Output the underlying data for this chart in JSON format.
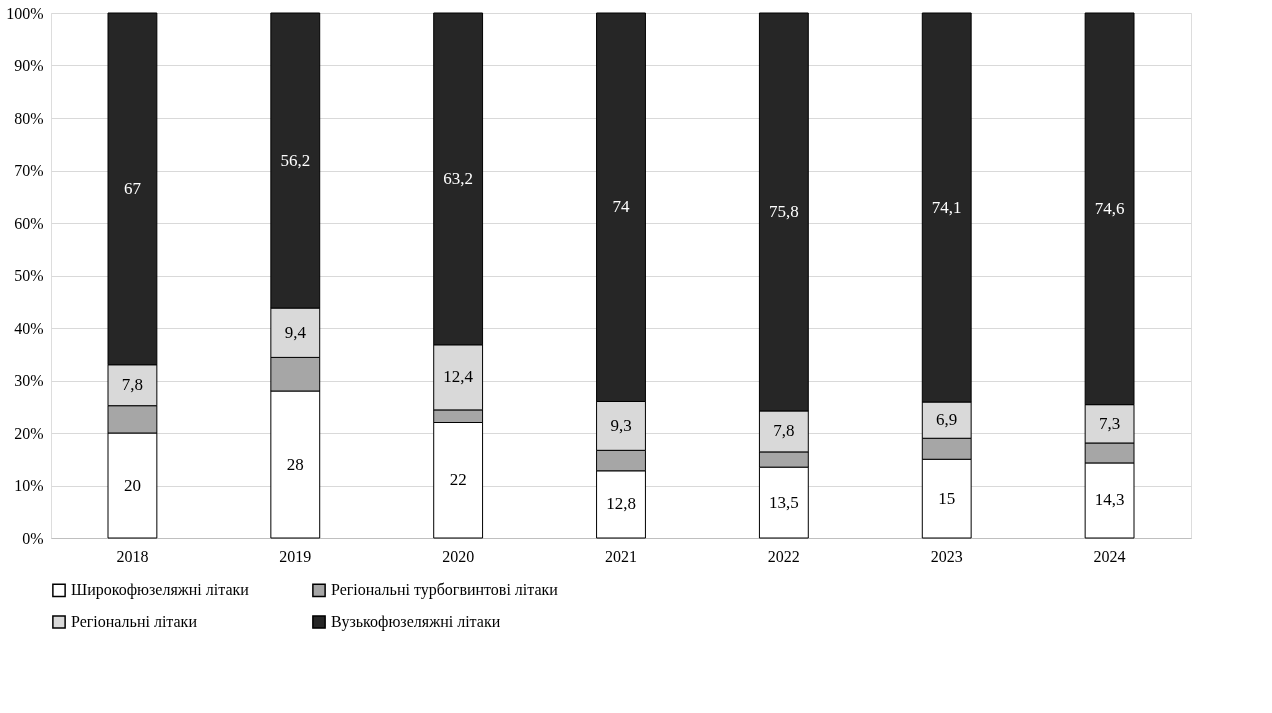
{
  "chart_data": {
    "type": "bar",
    "stacked": true,
    "categories": [
      "2018",
      "2019",
      "2020",
      "2021",
      "2022",
      "2023",
      "2024"
    ],
    "series": [
      {
        "name": "Широкофюзеляжні літаки",
        "color": "#ffffff",
        "values": [
          20,
          28,
          22,
          12.8,
          13.5,
          15,
          14.3
        ],
        "value_labels": [
          "20",
          "28",
          "22",
          "12,8",
          "13,5",
          "15",
          "14,3"
        ]
      },
      {
        "name": "Регіональні турбогвинтові літаки",
        "color": "#a6a6a6",
        "values": [
          5.2,
          6.4,
          2.4,
          3.9,
          2.9,
          4.0,
          3.8
        ]
      },
      {
        "name": "Регіональні літаки",
        "color": "#d9d9d9",
        "values": [
          7.8,
          9.4,
          12.4,
          9.3,
          7.8,
          6.9,
          7.3
        ],
        "value_labels": [
          "7,8",
          "9,4",
          "12,4",
          "9,3",
          "7,8",
          "6,9",
          "7,3"
        ]
      },
      {
        "name": "Вузькофюзеляжні літаки",
        "color": "#262626",
        "values": [
          67,
          56.2,
          63.2,
          74,
          75.8,
          74.1,
          74.6
        ],
        "value_labels": [
          "67",
          "56,2",
          "63,2",
          "74",
          "75,8",
          "74,1",
          "74,6"
        ]
      }
    ],
    "ylim": [
      0,
      100
    ],
    "yticks": [
      {
        "value": 0,
        "label": "0%"
      },
      {
        "value": 10,
        "label": "10%"
      },
      {
        "value": 20,
        "label": "20%"
      },
      {
        "value": 30,
        "label": "30%"
      },
      {
        "value": 40,
        "label": "40%"
      },
      {
        "value": 50,
        "label": "50%"
      },
      {
        "value": 60,
        "label": "60%"
      },
      {
        "value": 70,
        "label": "70%"
      },
      {
        "value": 80,
        "label": "80%"
      },
      {
        "value": 90,
        "label": "90%"
      },
      {
        "value": 100,
        "label": "100%"
      }
    ],
    "grid": "y",
    "legend": "bottom"
  }
}
